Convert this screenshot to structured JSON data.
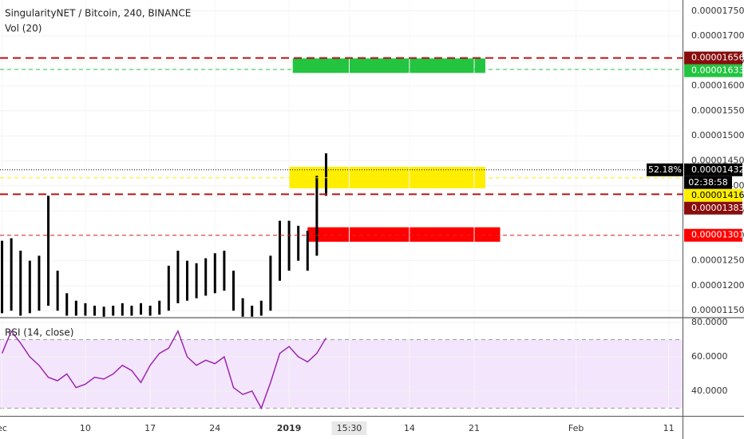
{
  "chart_data": [
    {
      "type": "candlestick",
      "title": "SingularityNET / Bitcoin, 240, BINANCE",
      "subtitle": "Vol (20)",
      "x": [
        0,
        1,
        2,
        3,
        4,
        5,
        6,
        7,
        8,
        9,
        10,
        11,
        12,
        13,
        14,
        15,
        16,
        17,
        18,
        19,
        20,
        21,
        22,
        23,
        24,
        25,
        26,
        27,
        28,
        29,
        30,
        31,
        32,
        33,
        34,
        35
      ],
      "high": [
        1.29e-05,
        1.295e-05,
        1.27e-05,
        1.25e-05,
        1.26e-05,
        1.38e-05,
        1.23e-05,
        1.185e-05,
        1.17e-05,
        1.165e-05,
        1.16e-05,
        1.158e-05,
        1.16e-05,
        1.165e-05,
        1.16e-05,
        1.165e-05,
        1.16e-05,
        1.17e-05,
        1.24e-05,
        1.27e-05,
        1.25e-05,
        1.245e-05,
        1.255e-05,
        1.265e-05,
        1.27e-05,
        1.23e-05,
        1.175e-05,
        1.16e-05,
        1.17e-05,
        1.26e-05,
        1.33e-05,
        1.33e-05,
        1.32e-05,
        1.31e-05,
        1.42e-05,
        1.465e-05
      ],
      "low": [
        1.145e-05,
        1.15e-05,
        1.14e-05,
        1.145e-05,
        1.15e-05,
        1.16e-05,
        1.15e-05,
        1.14e-05,
        1.14e-05,
        1.14e-05,
        1.14e-05,
        1.138e-05,
        1.14e-05,
        1.14e-05,
        1.14e-05,
        1.142e-05,
        1.14e-05,
        1.142e-05,
        1.15e-05,
        1.165e-05,
        1.17e-05,
        1.175e-05,
        1.18e-05,
        1.185e-05,
        1.19e-05,
        1.15e-05,
        1.138e-05,
        1.138e-05,
        1.14e-05,
        1.15e-05,
        1.21e-05,
        1.23e-05,
        1.25e-05,
        1.23e-05,
        1.26e-05,
        1.38e-05
      ],
      "color": "#000000",
      "xlim": [
        -0.22,
        73.5
      ],
      "ylim": [
        1.136e-05,
        1.772e-05
      ],
      "yticks": [
        {
          "value": 1.15e-05,
          "label": "0.00001150"
        },
        {
          "value": 1.2e-05,
          "label": "0.00001200"
        },
        {
          "value": 1.25e-05,
          "label": "0.00001250"
        },
        {
          "value": 1.3e-05,
          "label": "0.00001300"
        },
        {
          "value": 1.35e-05,
          "label": "0.00001350"
        },
        {
          "value": 1.4e-05,
          "label": "0.00001400"
        },
        {
          "value": 1.45e-05,
          "label": "0.00001450"
        },
        {
          "value": 1.5e-05,
          "label": "0.00001500"
        },
        {
          "value": 1.55e-05,
          "label": "0.00001550"
        },
        {
          "value": 1.6e-05,
          "label": "0.00001600"
        },
        {
          "value": 1.65e-05,
          "label": "0.00001650"
        },
        {
          "value": 1.7e-05,
          "label": "0.00001700"
        },
        {
          "value": 1.75e-05,
          "label": "0.00001750"
        }
      ],
      "zones": [
        {
          "x": [
            31.4,
            52.2
          ],
          "y": [
            1.626e-05,
            1.655e-05
          ],
          "color": "#22c440"
        },
        {
          "x": [
            31.0,
            52.2
          ],
          "y": [
            1.395e-05,
            1.438e-05
          ],
          "color": "#ffee00"
        },
        {
          "x": [
            33.0,
            53.8
          ],
          "y": [
            1.288e-05,
            1.317e-05
          ],
          "color": "#ff0000"
        }
      ],
      "levels": [
        {
          "value": 1.656e-05,
          "color": "#b01818",
          "label_color": "#880e0e",
          "style": "dashed",
          "width": 2
        },
        {
          "value": 1.633e-05,
          "color": "#22c440",
          "label_color": "#22c440",
          "style": "dashed",
          "width": 1
        },
        {
          "value": 1.432e-05,
          "color": "#000000",
          "label_color": "#000000",
          "style": "dotted",
          "width": 1,
          "change": "52.18%",
          "countdown": "02:38:58"
        },
        {
          "value": 1.416e-05,
          "color": "#ffee00",
          "label_color": "#ffee00",
          "style": "dashed",
          "width": 1
        },
        {
          "value": 1.383e-05,
          "color": "#b01818",
          "label_color": "#880e0e",
          "style": "dashed",
          "width": 2
        },
        {
          "value": 1.301e-05,
          "color": "#e02020",
          "label_color": "#ff0000",
          "style": "dashed",
          "width": 1
        }
      ]
    },
    {
      "type": "line",
      "title": "RSI (14, close)",
      "x": [
        0,
        1,
        2,
        3,
        4,
        5,
        6,
        7,
        8,
        9,
        10,
        11,
        12,
        13,
        14,
        15,
        16,
        17,
        18,
        19,
        20,
        21,
        22,
        23,
        24,
        25,
        26,
        27,
        28,
        29,
        30,
        31,
        32,
        33,
        34,
        35
      ],
      "values": [
        62,
        75,
        68,
        60,
        55,
        48,
        46,
        50,
        42,
        44,
        48,
        47,
        50,
        55,
        52,
        45,
        55,
        62,
        65,
        75,
        60,
        55,
        58,
        56,
        60,
        42,
        38,
        40,
        30,
        45,
        62,
        66,
        60,
        57,
        62,
        71
      ],
      "color": "#9c27b0",
      "band": [
        30,
        70
      ],
      "band_color": "#f3e5fc",
      "xlim": [
        -0.22,
        73.5
      ],
      "ylim": [
        26,
        82.8
      ],
      "yticks": [
        {
          "value": 80,
          "label": "80.0000"
        },
        {
          "value": 60,
          "label": "60.0000"
        },
        {
          "value": 40,
          "label": "40.0000"
        }
      ],
      "xticks": [
        {
          "value": 0,
          "label": "ec"
        },
        {
          "value": 9,
          "label": "10"
        },
        {
          "value": 16,
          "label": "17"
        },
        {
          "value": 23,
          "label": "24"
        },
        {
          "value": 31,
          "label": "2019"
        },
        {
          "value": 37.5,
          "label": "15:30"
        },
        {
          "value": 44,
          "label": "14"
        },
        {
          "value": 51,
          "label": "21"
        },
        {
          "value": 62,
          "label": "Feb"
        },
        {
          "value": 72,
          "label": "11"
        }
      ]
    }
  ]
}
